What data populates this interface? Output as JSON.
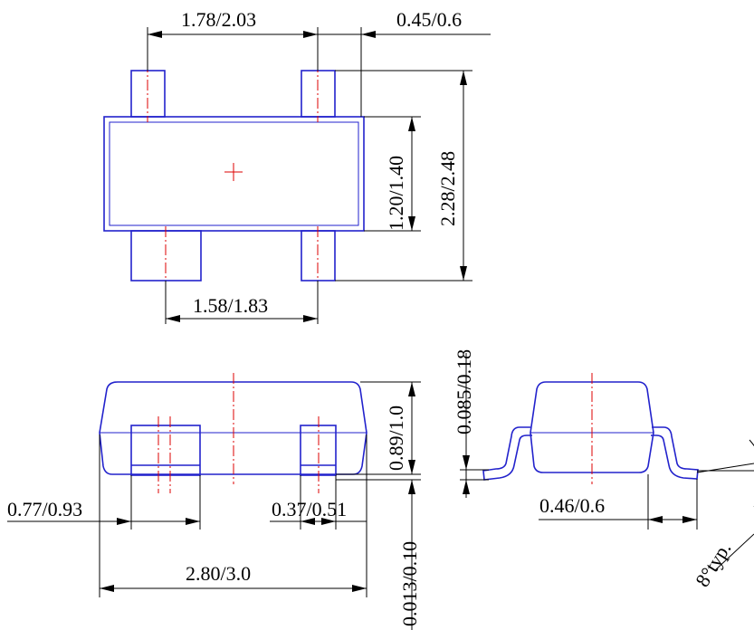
{
  "colors": {
    "outline": "#2222cc",
    "centerline": "#dd0000",
    "dimension": "#000000",
    "background": "#ffffff"
  },
  "dimensions": {
    "top_pin_pitch": "1.78/2.03",
    "lead_width": "0.45/0.6",
    "body_width": "1.20/1.40",
    "overall_width": "2.28/2.48",
    "bottom_pin_pitch": "1.58/1.83",
    "body_height": "0.89/1.0",
    "lead_thickness": "0.085/0.18",
    "left_lead_width": "0.77/0.93",
    "right_lead_width": "0.37/0.51",
    "body_length": "2.80/3.0",
    "standoff": "0.013/0.10",
    "foot_length": "0.46/0.6",
    "lead_angle": "8°typ."
  }
}
